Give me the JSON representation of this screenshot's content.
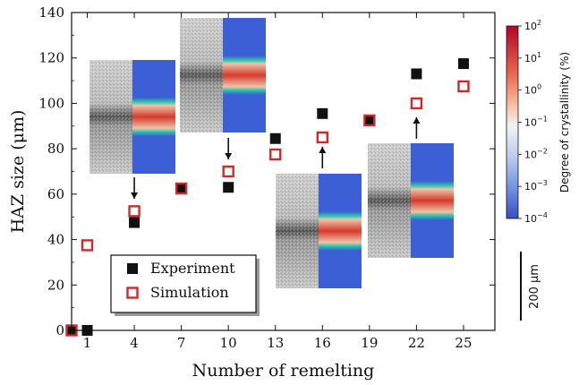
{
  "chart_data": {
    "type": "scatter",
    "xlabel": "Number of remelting",
    "ylabel": "HAZ size (μm)",
    "x_ticks": [
      1,
      4,
      7,
      10,
      13,
      16,
      19,
      22,
      25
    ],
    "y_ticks": [
      0,
      20,
      40,
      60,
      80,
      100,
      120,
      140
    ],
    "xlim": [
      0,
      27
    ],
    "ylim": [
      0,
      140
    ],
    "grid": false,
    "legend_position": "lower-left",
    "series": [
      {
        "name": "Experiment",
        "marker": "filled-square",
        "color": "#111111",
        "x": [
          0,
          1,
          4,
          7,
          10,
          13,
          16,
          19,
          22,
          25
        ],
        "y": [
          0,
          0,
          47.5,
          62.5,
          63,
          84.5,
          95.5,
          92.5,
          113,
          117.5
        ]
      },
      {
        "name": "Simulation",
        "marker": "open-square",
        "color": "#d62728",
        "x": [
          0,
          1,
          4,
          7,
          10,
          13,
          16,
          19,
          22,
          25
        ],
        "y": [
          0,
          37.5,
          52.5,
          62.5,
          70,
          77.5,
          85,
          92.5,
          100,
          107.5
        ]
      }
    ],
    "colorbar": {
      "label": "Degree of crystallinity (%)",
      "scale": "log",
      "ticks": [
        {
          "base": "10",
          "exp": "2"
        },
        {
          "base": "10",
          "exp": "1"
        },
        {
          "base": "10",
          "exp": "0"
        },
        {
          "base": "10",
          "exp": "−1"
        },
        {
          "base": "10",
          "exp": "−2"
        },
        {
          "base": "10",
          "exp": "−3"
        },
        {
          "base": "10",
          "exp": "−4"
        }
      ],
      "colors": [
        "#b40426",
        "#f7b89c",
        "#f5f5f5",
        "#c9d7f0",
        "#3b4cc0"
      ]
    },
    "scale_bar_label": "200 μm",
    "insets": [
      {
        "near_x": 4,
        "arrow": "down"
      },
      {
        "near_x": 10,
        "arrow": "down"
      },
      {
        "near_x": 16,
        "arrow": "up"
      },
      {
        "near_x": 22,
        "arrow": "up"
      }
    ]
  }
}
